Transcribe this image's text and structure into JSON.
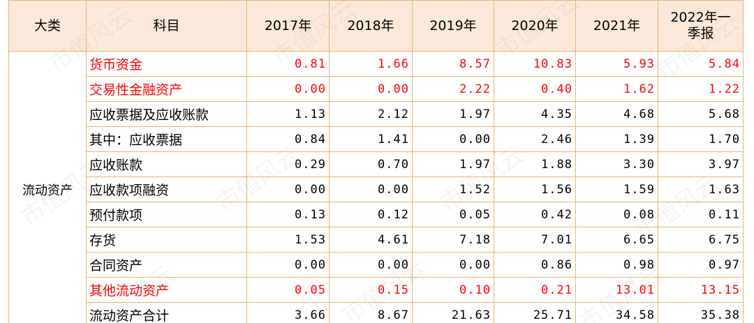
{
  "header": {
    "category": "大类",
    "subject": "科目",
    "years": [
      "2017年",
      "2018年",
      "2019年",
      "2020年",
      "2021年",
      "2022年一季报"
    ]
  },
  "category_label": "流动资产",
  "rows": [
    {
      "name": "货币资金",
      "highlight": true,
      "values": [
        "0.81",
        "1.66",
        "8.57",
        "10.83",
        "5.93",
        "5.84"
      ]
    },
    {
      "name": "交易性金融资产",
      "highlight": true,
      "values": [
        "0.00",
        "0.00",
        "2.22",
        "0.40",
        "1.62",
        "1.22"
      ]
    },
    {
      "name": "应收票据及应收账款",
      "highlight": false,
      "values": [
        "1.13",
        "2.12",
        "1.97",
        "4.35",
        "4.68",
        "5.68"
      ]
    },
    {
      "name": "其中：应收票据",
      "highlight": false,
      "values": [
        "0.84",
        "1.41",
        "0.00",
        "2.46",
        "1.39",
        "1.70"
      ]
    },
    {
      "name": "应收账款",
      "highlight": false,
      "values": [
        "0.29",
        "0.70",
        "1.97",
        "1.88",
        "3.30",
        "3.97"
      ]
    },
    {
      "name": "应收款项融资",
      "highlight": false,
      "values": [
        "0.00",
        "0.00",
        "1.52",
        "1.56",
        "1.59",
        "1.63"
      ]
    },
    {
      "name": "预付款项",
      "highlight": false,
      "values": [
        "0.13",
        "0.12",
        "0.05",
        "0.42",
        "0.08",
        "0.11"
      ]
    },
    {
      "name": "存货",
      "highlight": false,
      "values": [
        "1.53",
        "4.61",
        "7.18",
        "7.01",
        "6.65",
        "6.75"
      ]
    },
    {
      "name": "合同资产",
      "highlight": false,
      "values": [
        "0.00",
        "0.00",
        "0.00",
        "0.86",
        "0.98",
        "0.97"
      ]
    },
    {
      "name": "其他流动资产",
      "highlight": true,
      "values": [
        "0.05",
        "0.15",
        "0.10",
        "0.21",
        "13.01",
        "13.15"
      ]
    },
    {
      "name": "流动资产合计",
      "highlight": false,
      "values": [
        "3.66",
        "8.67",
        "21.63",
        "25.71",
        "34.58",
        "35.38"
      ]
    }
  ],
  "watermark": "市值风云",
  "colors": {
    "highlight": "#ff0000",
    "header_bg": "#fde9d9",
    "border": "#e8b472"
  }
}
